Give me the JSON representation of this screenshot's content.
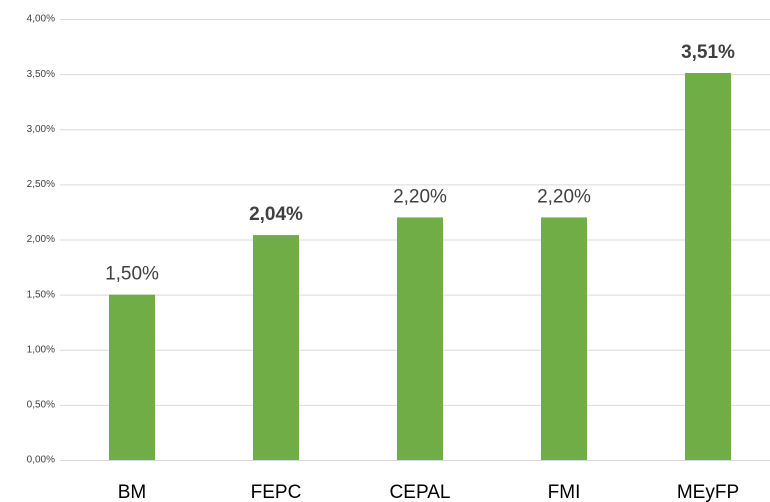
{
  "chart_data": {
    "type": "bar",
    "categories": [
      "BM",
      "FEPC",
      "CEPAL",
      "FMI",
      "MEyFP"
    ],
    "values": [
      1.5,
      2.04,
      2.2,
      2.2,
      3.51
    ],
    "value_labels": [
      "1,50%",
      "2,04%",
      "2,20%",
      "2,20%",
      "3,51%"
    ],
    "bold_labels": [
      false,
      true,
      false,
      false,
      true
    ],
    "color": "#70ad47",
    "ylim": [
      0,
      4
    ],
    "yticks": [
      {
        "value": 0,
        "label": "0,00%"
      },
      {
        "value": 0.5,
        "label": "0,50%"
      },
      {
        "value": 1,
        "label": "1,00%"
      },
      {
        "value": 1.5,
        "label": "1,50%"
      },
      {
        "value": 2,
        "label": "2,00%"
      },
      {
        "value": 2.5,
        "label": "2,50%"
      },
      {
        "value": 3,
        "label": "3,00%"
      },
      {
        "value": 3.5,
        "label": "3,50%"
      },
      {
        "value": 4,
        "label": "4,00%"
      }
    ],
    "grid": true
  }
}
